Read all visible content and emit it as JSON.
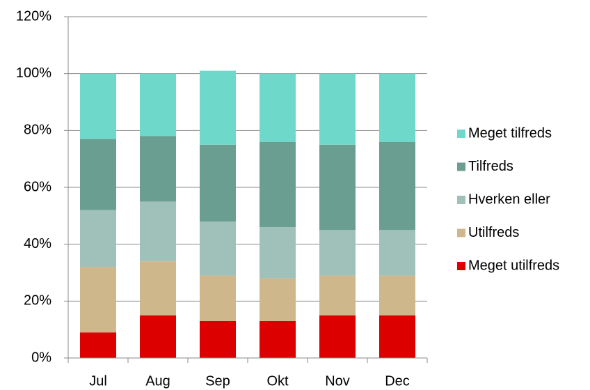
{
  "chart_data": {
    "type": "stacked_bar",
    "categories": [
      "Jul",
      "Aug",
      "Sep",
      "Okt",
      "Nov",
      "Dec"
    ],
    "series": [
      {
        "name": "Meget utilfreds",
        "color": "#dd0000",
        "values": [
          9,
          15,
          13,
          13,
          15,
          15
        ]
      },
      {
        "name": "Utilfreds",
        "color": "#cdb78b",
        "values": [
          23,
          19,
          16,
          15,
          14,
          14
        ]
      },
      {
        "name": "Hverken eller",
        "color": "#9fc1b9",
        "values": [
          20,
          21,
          19,
          18,
          16,
          16
        ]
      },
      {
        "name": "Tilfreds",
        "color": "#6a9e90",
        "values": [
          25,
          23,
          27,
          30,
          30,
          31
        ]
      },
      {
        "name": "Meget tilfreds",
        "color": "#6ed9cb",
        "values": [
          23,
          22,
          26,
          24,
          25,
          24
        ]
      }
    ],
    "ylim": [
      0,
      120
    ],
    "yticks": [
      {
        "value": 0,
        "label": "0%"
      },
      {
        "value": 20,
        "label": "20%"
      },
      {
        "value": 40,
        "label": "40%"
      },
      {
        "value": 60,
        "label": "60%"
      },
      {
        "value": 80,
        "label": "80%"
      },
      {
        "value": 100,
        "label": "100%"
      },
      {
        "value": 120,
        "label": "120%"
      }
    ],
    "grid": true,
    "legend": "right"
  }
}
